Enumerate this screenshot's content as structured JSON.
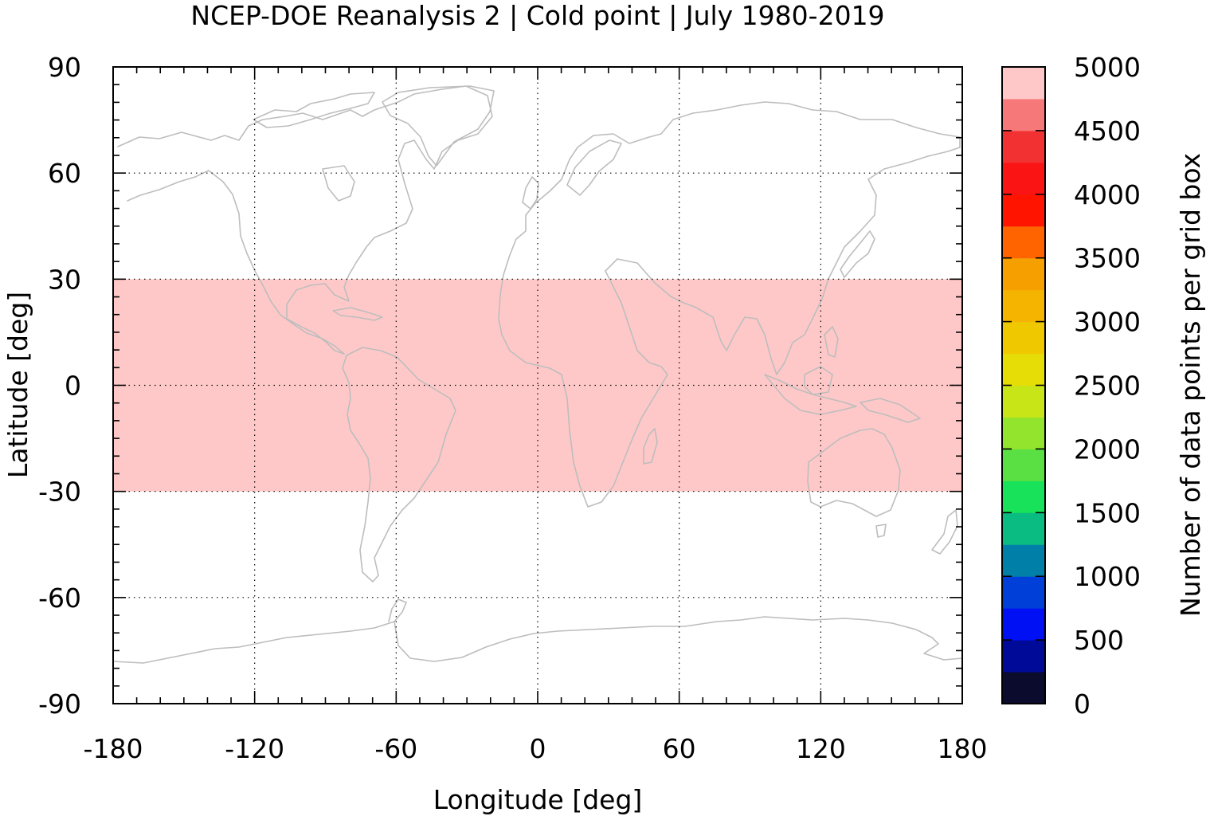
{
  "chart_data": {
    "type": "heatmap",
    "title": "NCEP-DOE Reanalysis 2 | Cold point | July 1980-2019",
    "xlabel": "Longitude [deg]",
    "ylabel": "Latitude [deg]",
    "xlim": [
      -180,
      180
    ],
    "ylim": [
      -90,
      90
    ],
    "x_ticks": [
      -180,
      -120,
      -60,
      0,
      60,
      120,
      180
    ],
    "y_ticks": [
      90,
      60,
      30,
      0,
      -30,
      -60,
      -90
    ],
    "x_tick_labels": [
      "-180",
      "-120",
      "-60",
      "0",
      "60",
      "120",
      "180"
    ],
    "y_tick_labels": [
      "90",
      "60",
      "30",
      "0",
      "-30",
      "-60",
      "-90"
    ],
    "grid": true,
    "basemap": "coastlines",
    "coastline_color": "#bdbdbd",
    "data_regions": [
      {
        "lat_min": -30,
        "lat_max": 30,
        "lon_min": -180,
        "lon_max": 180,
        "value": 5000
      }
    ],
    "colorbar": {
      "label": "Number of data points per grid box",
      "min": 0,
      "max": 5000,
      "step": 250,
      "tick_values": [
        0,
        500,
        1000,
        1500,
        2000,
        2500,
        3000,
        3500,
        4000,
        4500,
        5000
      ],
      "tick_labels": [
        "0",
        "500",
        "1000",
        "1500",
        "2000",
        "2500",
        "3000",
        "3500",
        "4000",
        "4500",
        "5000"
      ],
      "colors": [
        "#0b0b2e",
        "#000a99",
        "#0010f5",
        "#0040d8",
        "#0080a8",
        "#0abc82",
        "#18e25a",
        "#5ae042",
        "#92e42c",
        "#c8e617",
        "#e6dc06",
        "#f0c800",
        "#f5b400",
        "#f5a000",
        "#ff6400",
        "#ff1400",
        "#fa1414",
        "#f23232",
        "#f77878",
        "#ffc8c8"
      ]
    }
  }
}
